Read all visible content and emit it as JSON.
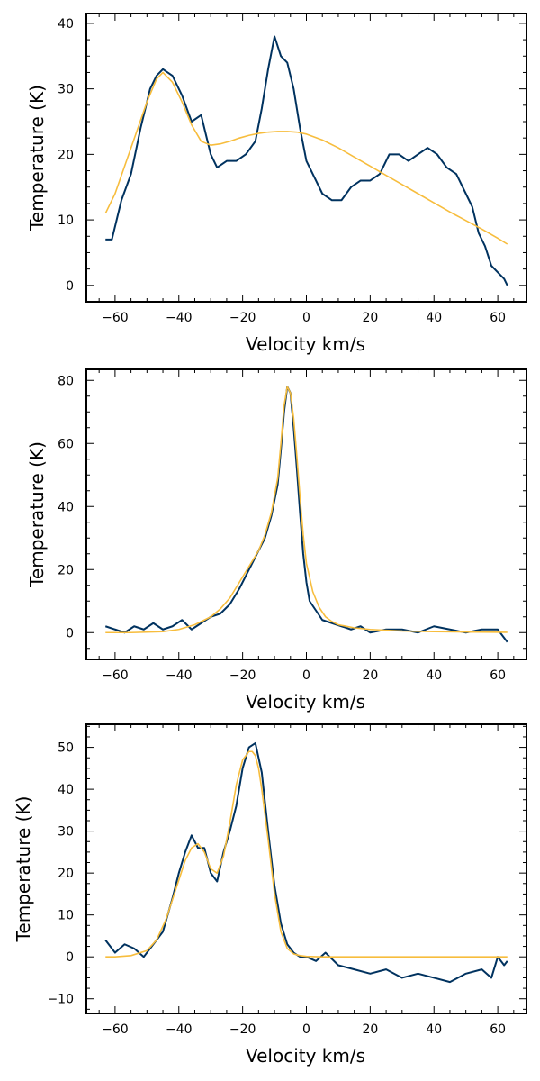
{
  "chart_data": [
    {
      "type": "line",
      "xlabel": "Velocity km/s",
      "ylabel": "Temperature (K)",
      "xlim": [
        -69,
        69
      ],
      "ylim": [
        -2.5,
        41.5
      ],
      "xticks": [
        -60,
        -40,
        -20,
        0,
        20,
        40,
        60
      ],
      "yticks": [
        0,
        10,
        20,
        30,
        40
      ],
      "grid": false,
      "series": [
        {
          "color": "#00325f",
          "x": [
            -63,
            -61,
            -58,
            -55,
            -52,
            -49,
            -47,
            -45,
            -42,
            -39,
            -36,
            -33,
            -30,
            -28,
            -25,
            -22,
            -19,
            -16,
            -14,
            -12,
            -10,
            -8,
            -6,
            -4,
            -2,
            0,
            2,
            5,
            8,
            11,
            14,
            17,
            20,
            23,
            26,
            29,
            32,
            35,
            38,
            41,
            44,
            47,
            50,
            52,
            54,
            56,
            58,
            60,
            62,
            63
          ],
          "y": [
            7,
            7,
            13,
            17,
            24,
            30,
            32,
            33,
            32,
            29,
            25,
            26,
            20,
            18,
            19,
            19,
            20,
            22,
            27,
            33,
            38,
            35,
            34,
            30,
            24,
            19,
            17,
            14,
            13,
            13,
            15,
            16,
            16,
            17,
            20,
            20,
            19,
            20,
            21,
            20,
            18,
            17,
            14,
            12,
            8,
            6,
            3,
            2,
            1,
            0
          ]
        },
        {
          "color": "#f7bd3d",
          "x": [
            -63,
            -60,
            -55,
            -50,
            -47,
            -45,
            -42,
            -39,
            -36,
            -33,
            -30,
            -27,
            -24,
            -21,
            -18,
            -15,
            -12,
            -9,
            -6,
            -3,
            0,
            5,
            10,
            15,
            20,
            25,
            30,
            35,
            40,
            45,
            50,
            55,
            60,
            63
          ],
          "y": [
            11,
            14,
            21,
            28,
            31.5,
            32.5,
            31,
            28,
            24.5,
            22,
            21.4,
            21.6,
            22,
            22.5,
            22.9,
            23.2,
            23.4,
            23.5,
            23.5,
            23.4,
            23.1,
            22.2,
            21,
            19.6,
            18.2,
            16.8,
            15.4,
            14,
            12.6,
            11.2,
            9.9,
            8.6,
            7.2,
            6.3
          ]
        }
      ]
    },
    {
      "type": "line",
      "xlabel": "Velocity km/s",
      "ylabel": "Temperature (K)",
      "xlim": [
        -69,
        69
      ],
      "ylim": [
        -8.5,
        83.5
      ],
      "xticks": [
        -60,
        -40,
        -20,
        0,
        20,
        40,
        60
      ],
      "yticks": [
        0,
        20,
        40,
        60,
        80
      ],
      "grid": false,
      "series": [
        {
          "color": "#00325f",
          "x": [
            -63,
            -60,
            -57,
            -54,
            -51,
            -48,
            -45,
            -42,
            -39,
            -36,
            -33,
            -30,
            -27,
            -24,
            -21,
            -18,
            -15,
            -13,
            -11,
            -9,
            -8,
            -7,
            -6,
            -5,
            -4,
            -3,
            -2,
            -1,
            0,
            1,
            3,
            5,
            8,
            11,
            14,
            17,
            20,
            25,
            30,
            35,
            40,
            45,
            50,
            55,
            60,
            63
          ],
          "y": [
            2,
            1,
            0,
            2,
            1,
            3,
            1,
            2,
            4,
            1,
            3,
            5,
            6,
            9,
            14,
            20,
            26,
            30,
            37,
            47,
            58,
            70,
            78,
            76,
            65,
            52,
            38,
            25,
            16,
            10,
            7,
            4,
            3,
            2,
            1,
            2,
            0,
            1,
            1,
            0,
            2,
            1,
            0,
            1,
            1,
            -3
          ]
        },
        {
          "color": "#f7bd3d",
          "x": [
            -63,
            -55,
            -45,
            -40,
            -35,
            -30,
            -27,
            -24,
            -21,
            -18,
            -15,
            -13,
            -11,
            -9,
            -8,
            -7,
            -6,
            -5,
            -4,
            -3,
            -2,
            -1,
            0,
            2,
            4,
            6,
            8,
            10,
            15,
            20,
            30,
            40,
            50,
            63
          ],
          "y": [
            0,
            0,
            0.3,
            1,
            2.5,
            5,
            7.5,
            11,
            16,
            21,
            26,
            31,
            38,
            49,
            60,
            72,
            78,
            76,
            68,
            56,
            43,
            31,
            22,
            13,
            8,
            5,
            3.5,
            2.5,
            1.5,
            1,
            0.5,
            0.3,
            0.2,
            0.1
          ]
        }
      ]
    },
    {
      "type": "line",
      "xlabel": "Velocity km/s",
      "ylabel": "Temperature (K)",
      "xlim": [
        -69,
        69
      ],
      "ylim": [
        -13.5,
        55.5
      ],
      "xticks": [
        -60,
        -40,
        -20,
        0,
        20,
        40,
        60
      ],
      "yticks": [
        -10,
        0,
        10,
        20,
        30,
        40,
        50
      ],
      "grid": false,
      "series": [
        {
          "color": "#00325f",
          "x": [
            -63,
            -60,
            -57,
            -54,
            -51,
            -48,
            -45,
            -42,
            -40,
            -38,
            -36,
            -34,
            -32,
            -30,
            -28,
            -26,
            -24,
            -22,
            -20,
            -18,
            -16,
            -14,
            -12,
            -10,
            -8,
            -6,
            -4,
            -2,
            0,
            3,
            6,
            10,
            15,
            20,
            25,
            30,
            35,
            40,
            45,
            50,
            55,
            58,
            60,
            62,
            63
          ],
          "y": [
            4,
            1,
            3,
            2,
            0,
            3,
            6,
            14,
            20,
            25,
            29,
            26,
            26,
            20,
            18,
            25,
            30,
            36,
            45,
            50,
            51,
            44,
            30,
            17,
            8,
            3,
            1,
            0,
            0,
            -1,
            1,
            -2,
            -3,
            -4,
            -3,
            -5,
            -4,
            -5,
            -6,
            -4,
            -3,
            -5,
            0,
            -2,
            -1
          ]
        },
        {
          "color": "#f7bd3d",
          "x": [
            -63,
            -60,
            -55,
            -50,
            -47,
            -44,
            -41,
            -38,
            -36,
            -34,
            -32,
            -30,
            -28,
            -26,
            -24,
            -22,
            -20,
            -18,
            -17,
            -16,
            -15,
            -14,
            -12,
            -10,
            -8,
            -6,
            -4,
            -2,
            0,
            5,
            10,
            20,
            40,
            63
          ],
          "y": [
            0,
            0,
            0.3,
            1.5,
            4,
            9,
            16,
            23,
            26,
            27,
            25,
            21,
            20,
            24,
            32,
            41,
            47,
            49,
            49,
            48,
            45,
            40,
            28,
            15,
            6,
            2,
            0.7,
            0.3,
            0.1,
            0,
            0,
            0,
            0,
            0
          ]
        }
      ]
    }
  ]
}
